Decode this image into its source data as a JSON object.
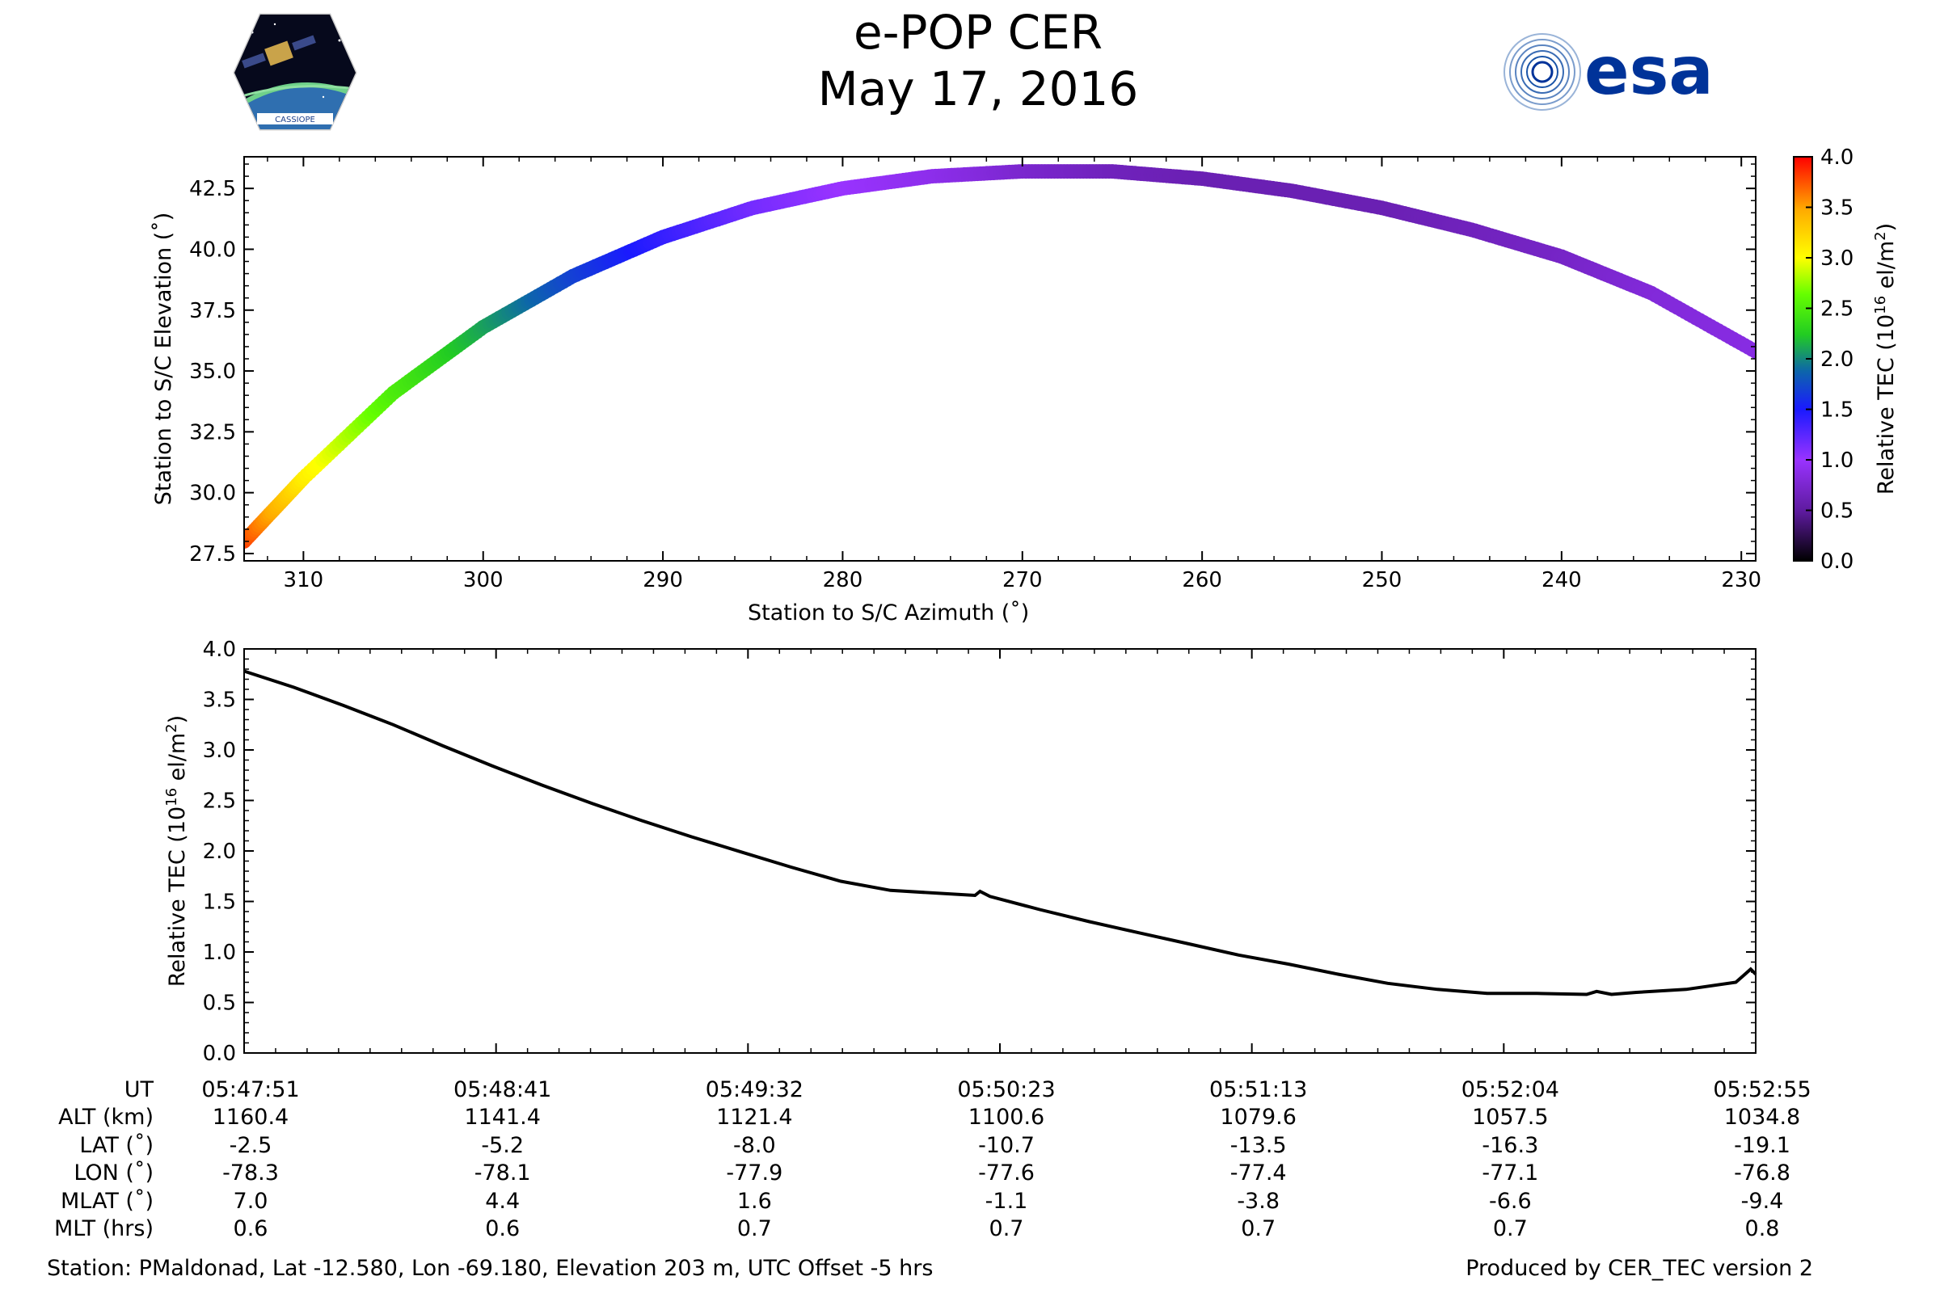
{
  "title": {
    "line1": "e-POP CER",
    "line2": "May 17, 2016"
  },
  "logos": {
    "left": "CASSIOPE",
    "right": "esa"
  },
  "colors": {
    "line": "#000000",
    "esa_blue": "#003399"
  },
  "colorbar": {
    "label_main": "Relative TEC (10",
    "label_sup": "16",
    "label_end": " el/m",
    "label_sup2": "2",
    "label_close": ")",
    "ticks": [
      "0.0",
      "0.5",
      "1.0",
      "1.5",
      "2.0",
      "2.5",
      "3.0",
      "3.5",
      "4.0"
    ],
    "range": [
      0,
      4.0
    ]
  },
  "chart_data": [
    {
      "type": "scatter",
      "title": "",
      "xlabel": "Station to S/C Azimuth (˚)",
      "ylabel": "Station to S/C Elevation (˚)",
      "xlim": [
        313.3,
        229.2
      ],
      "ylim": [
        27.2,
        43.8
      ],
      "xticks": [
        310,
        300,
        290,
        280,
        270,
        260,
        250,
        240,
        230
      ],
      "xtick_labels": [
        "310",
        "300",
        "290",
        "280",
        "270",
        "260",
        "250",
        "240",
        "230"
      ],
      "yticks": [
        27.5,
        30.0,
        32.5,
        35.0,
        37.5,
        40.0,
        42.5
      ],
      "ytick_labels": [
        "27.5",
        "30.0",
        "32.5",
        "35.0",
        "37.5",
        "40.0",
        "42.5"
      ],
      "color_by": "Relative TEC",
      "points": [
        {
          "az": 313.3,
          "el": 28.0,
          "tec": 3.8
        },
        {
          "az": 310,
          "el": 30.6,
          "tec": 3.1
        },
        {
          "az": 305,
          "el": 34.1,
          "tec": 2.5
        },
        {
          "az": 300,
          "el": 36.8,
          "tec": 2.1
        },
        {
          "az": 295,
          "el": 38.9,
          "tec": 1.7
        },
        {
          "az": 290,
          "el": 40.5,
          "tec": 1.4
        },
        {
          "az": 285,
          "el": 41.7,
          "tec": 1.15
        },
        {
          "az": 280,
          "el": 42.5,
          "tec": 1.0
        },
        {
          "az": 275,
          "el": 43.0,
          "tec": 0.9
        },
        {
          "az": 270,
          "el": 43.2,
          "tec": 0.75
        },
        {
          "az": 265,
          "el": 43.2,
          "tec": 0.65
        },
        {
          "az": 260,
          "el": 42.9,
          "tec": 0.6
        },
        {
          "az": 255,
          "el": 42.4,
          "tec": 0.6
        },
        {
          "az": 250,
          "el": 41.7,
          "tec": 0.6
        },
        {
          "az": 245,
          "el": 40.8,
          "tec": 0.65
        },
        {
          "az": 240,
          "el": 39.7,
          "tec": 0.7
        },
        {
          "az": 235,
          "el": 38.2,
          "tec": 0.8
        },
        {
          "az": 229.2,
          "el": 35.8,
          "tec": 0.85
        }
      ]
    },
    {
      "type": "line",
      "title": "",
      "xlabel": "",
      "ylabel": "Relative TEC (10^16 el/m^2)",
      "ylabel_main": "Relative TEC (10",
      "ylabel_sup": "16",
      "ylabel_end": " el/m",
      "ylabel_sup2": "2",
      "ylabel_close": ")",
      "xlim": [
        0,
        304
      ],
      "ylim": [
        0,
        4.0
      ],
      "yticks": [
        "0.0",
        "0.5",
        "1.0",
        "1.5",
        "2.0",
        "2.5",
        "3.0",
        "3.5",
        "4.0"
      ],
      "x_unit": "seconds since 05:47:51",
      "series": [
        {
          "name": "Relative TEC",
          "x": [
            0,
            10,
            20,
            30,
            40,
            50,
            60,
            70,
            80,
            90,
            100,
            110,
            120,
            130,
            147,
            148,
            150,
            160,
            170,
            180,
            190,
            200,
            210,
            220,
            230,
            240,
            250,
            260,
            270,
            272,
            275,
            280,
            290,
            300,
            303,
            304
          ],
          "y": [
            3.78,
            3.62,
            3.44,
            3.25,
            3.04,
            2.84,
            2.65,
            2.47,
            2.3,
            2.14,
            1.99,
            1.84,
            1.7,
            1.61,
            1.56,
            1.6,
            1.55,
            1.42,
            1.3,
            1.19,
            1.08,
            0.97,
            0.88,
            0.78,
            0.69,
            0.63,
            0.59,
            0.59,
            0.58,
            0.61,
            0.58,
            0.6,
            0.63,
            0.7,
            0.83,
            0.78
          ]
        }
      ]
    }
  ],
  "info_table": {
    "row_labels": [
      "UT",
      "ALT (km)",
      "LAT (˚)",
      "LON (˚)",
      "MLAT (˚)",
      "MLT (hrs)"
    ],
    "columns": [
      [
        "05:47:51",
        "1160.4",
        "-2.5",
        "-78.3",
        "7.0",
        "0.6"
      ],
      [
        "05:48:41",
        "1141.4",
        "-5.2",
        "-78.1",
        "4.4",
        "0.6"
      ],
      [
        "05:49:32",
        "1121.4",
        "-8.0",
        "-77.9",
        "1.6",
        "0.7"
      ],
      [
        "05:50:23",
        "1100.6",
        "-10.7",
        "-77.6",
        "-1.1",
        "0.7"
      ],
      [
        "05:51:13",
        "1079.6",
        "-13.5",
        "-77.4",
        "-3.8",
        "0.7"
      ],
      [
        "05:52:04",
        "1057.5",
        "-16.3",
        "-77.1",
        "-6.6",
        "0.7"
      ],
      [
        "05:52:55",
        "1034.8",
        "-19.1",
        "-76.8",
        "-9.4",
        "0.8"
      ]
    ]
  },
  "footer": {
    "left": "Station: PMaldonad, Lat -12.580, Lon -69.180, Elevation 203 m, UTC Offset -5 hrs",
    "right": "Produced by CER_TEC version 2"
  }
}
